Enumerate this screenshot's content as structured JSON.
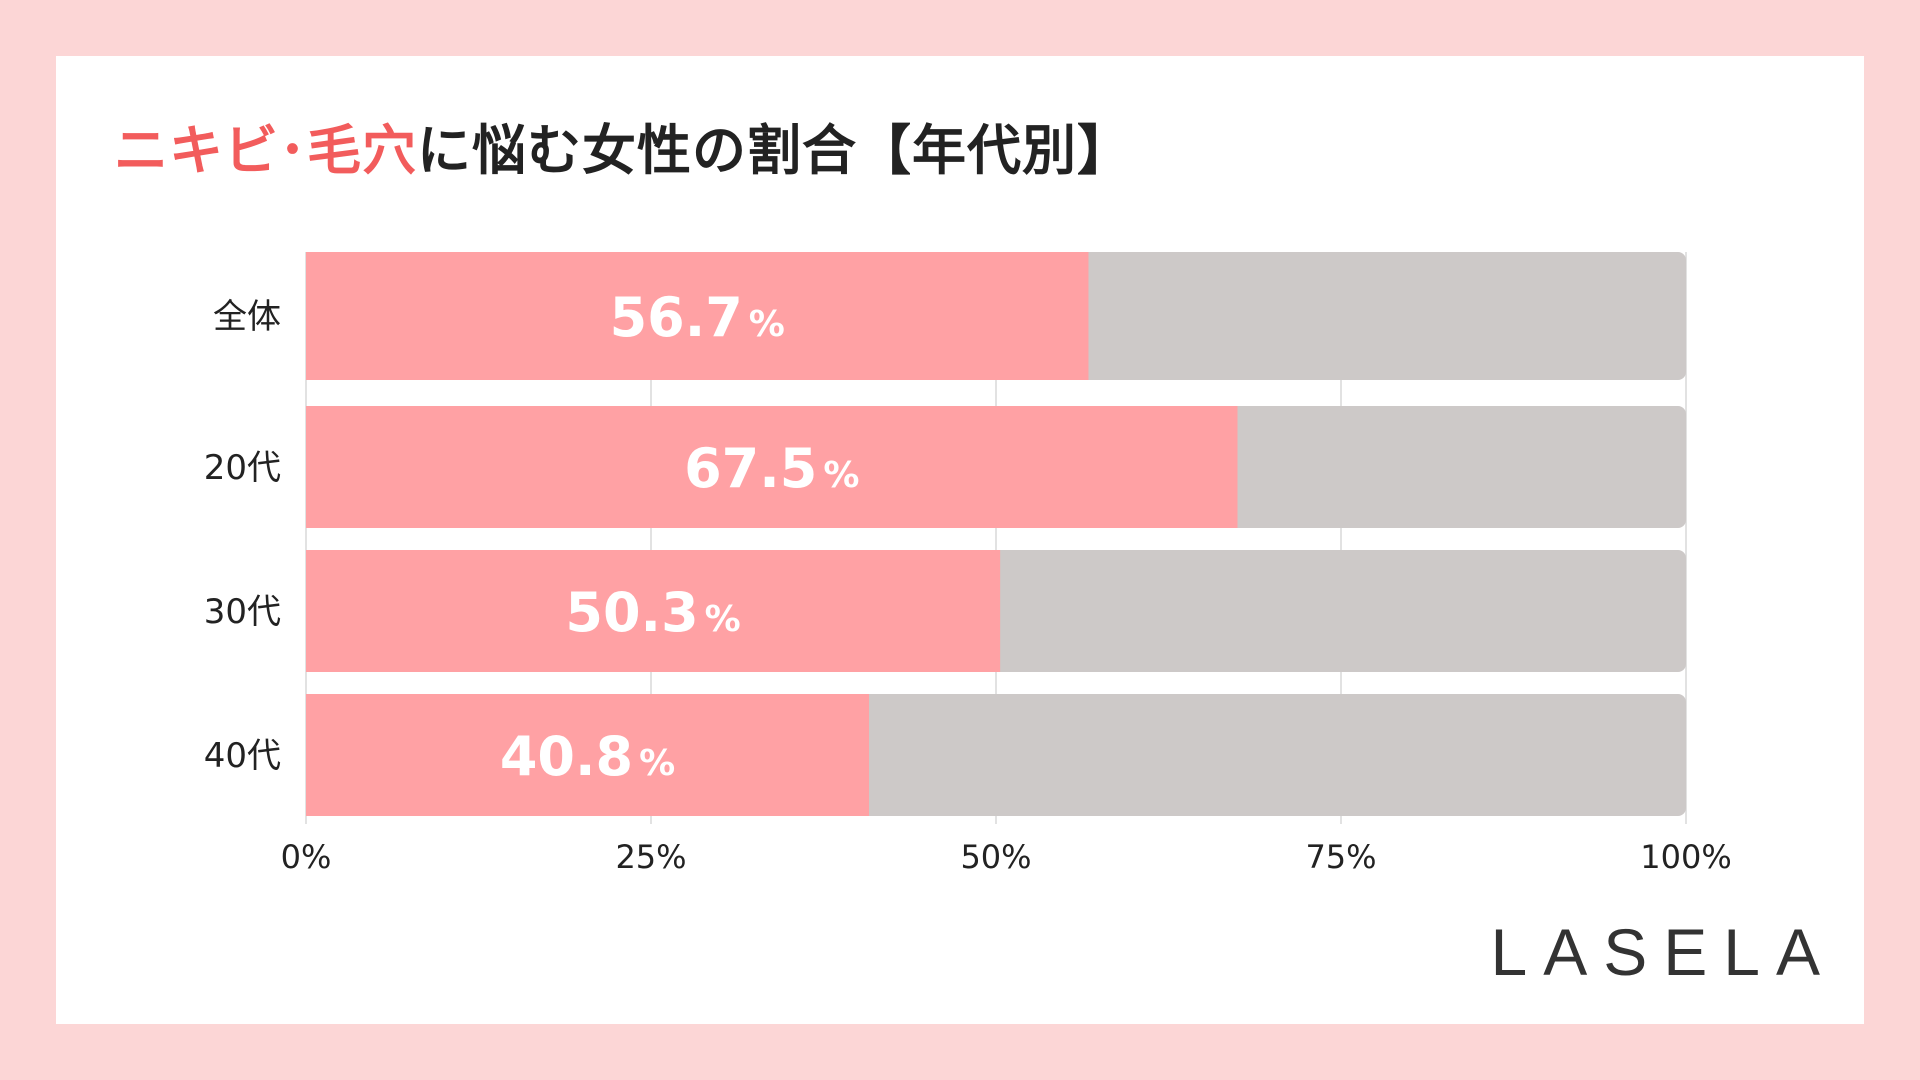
{
  "title": {
    "highlight": "ニキビ･毛穴",
    "rest": "に悩む女性の割合【年代別】"
  },
  "brand": "LASELA",
  "colors": {
    "background": "#fcd6d6",
    "bar": "#ffa1a4",
    "remainder": "#cdc9c8",
    "accent": "#f25c5c"
  },
  "chart_data": {
    "type": "bar",
    "orientation": "horizontal",
    "stacked_to_100": true,
    "categories": [
      "全体",
      "20代",
      "30代",
      "40代"
    ],
    "values": [
      56.7,
      67.5,
      50.3,
      40.8
    ],
    "value_labels": [
      "56.7",
      "67.5",
      "50.3",
      "40.8"
    ],
    "value_unit": "%",
    "xlim": [
      0,
      100
    ],
    "xticks": [
      0,
      25,
      50,
      75,
      100
    ],
    "xtick_labels": [
      "0%",
      "25%",
      "50%",
      "75%",
      "100%"
    ],
    "grid": true
  }
}
